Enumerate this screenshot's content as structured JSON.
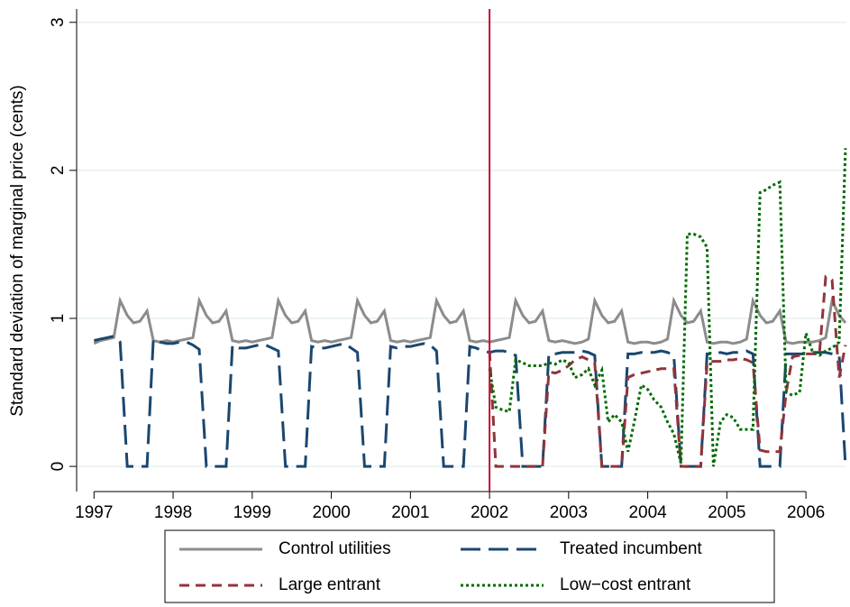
{
  "chart_data": {
    "type": "line",
    "ylabel": "Standard deviation of marginal price (cents)",
    "xlim": [
      1996.78,
      2006.5
    ],
    "ylim": [
      -0.17,
      3.09
    ],
    "xticks": [
      1997,
      1998,
      1999,
      2000,
      2001,
      2002,
      2003,
      2004,
      2005,
      2006
    ],
    "yticks": [
      0,
      1,
      2,
      3
    ],
    "grid": true,
    "legend": "bottom",
    "xline": {
      "value": 2002,
      "color": "#c4103a"
    },
    "x": [
      1997,
      1997.08,
      1997.17,
      1997.25,
      1997.33,
      1997.42,
      1997.5,
      1997.58,
      1997.67,
      1997.75,
      1997.83,
      1997.92,
      1998,
      1998.08,
      1998.17,
      1998.25,
      1998.33,
      1998.42,
      1998.5,
      1998.58,
      1998.67,
      1998.75,
      1998.83,
      1998.92,
      1999,
      1999.08,
      1999.17,
      1999.25,
      1999.33,
      1999.42,
      1999.5,
      1999.58,
      1999.67,
      1999.75,
      1999.83,
      1999.92,
      2000,
      2000.08,
      2000.17,
      2000.25,
      2000.33,
      2000.42,
      2000.5,
      2000.58,
      2000.67,
      2000.75,
      2000.83,
      2000.92,
      2001,
      2001.08,
      2001.17,
      2001.25,
      2001.33,
      2001.42,
      2001.5,
      2001.58,
      2001.67,
      2001.75,
      2001.83,
      2001.92,
      2002,
      2002.08,
      2002.17,
      2002.25,
      2002.33,
      2002.42,
      2002.5,
      2002.58,
      2002.67,
      2002.75,
      2002.83,
      2002.92,
      2003,
      2003.08,
      2003.17,
      2003.25,
      2003.33,
      2003.42,
      2003.5,
      2003.58,
      2003.67,
      2003.75,
      2003.83,
      2003.92,
      2004,
      2004.08,
      2004.17,
      2004.25,
      2004.33,
      2004.42,
      2004.5,
      2004.58,
      2004.67,
      2004.75,
      2004.83,
      2004.92,
      2005,
      2005.08,
      2005.17,
      2005.25,
      2005.33,
      2005.42,
      2005.5,
      2005.58,
      2005.67,
      2005.75,
      2005.83,
      2005.92,
      2006,
      2006.08,
      2006.17,
      2006.25,
      2006.33,
      2006.42,
      2006.5
    ],
    "series": [
      {
        "name": "Control utilities",
        "color": "#8c8c8c",
        "dash": "solid",
        "values": [
          0.83,
          0.85,
          0.86,
          0.87,
          1.12,
          1.02,
          0.97,
          0.98,
          1.05,
          0.85,
          0.84,
          0.85,
          0.84,
          0.85,
          0.86,
          0.87,
          1.12,
          1.02,
          0.97,
          0.98,
          1.05,
          0.85,
          0.84,
          0.85,
          0.84,
          0.85,
          0.86,
          0.87,
          1.12,
          1.02,
          0.97,
          0.98,
          1.05,
          0.85,
          0.84,
          0.85,
          0.84,
          0.85,
          0.86,
          0.87,
          1.12,
          1.02,
          0.97,
          0.98,
          1.05,
          0.85,
          0.84,
          0.85,
          0.84,
          0.85,
          0.86,
          0.87,
          1.12,
          1.02,
          0.97,
          0.98,
          1.05,
          0.85,
          0.84,
          0.85,
          0.84,
          0.85,
          0.86,
          0.87,
          1.12,
          1.02,
          0.97,
          0.98,
          1.05,
          0.85,
          0.84,
          0.85,
          0.84,
          0.83,
          0.84,
          0.86,
          1.12,
          1.02,
          0.97,
          0.98,
          1.05,
          0.84,
          0.83,
          0.84,
          0.84,
          0.83,
          0.84,
          0.86,
          1.12,
          1.02,
          0.97,
          0.98,
          1.05,
          0.84,
          0.83,
          0.84,
          0.84,
          0.83,
          0.84,
          0.86,
          1.12,
          1.02,
          0.97,
          0.98,
          1.05,
          0.84,
          0.83,
          0.84,
          0.84,
          0.84,
          0.85,
          0.87,
          1.12,
          1.02,
          0.97
        ]
      },
      {
        "name": "Treated incumbent",
        "color": "#1a476f",
        "dash": "longdash",
        "values": [
          0.85,
          0.86,
          0.87,
          0.88,
          0.84,
          0,
          0,
          0,
          0,
          0.86,
          0.84,
          0.83,
          0.83,
          0.84,
          0.84,
          0.82,
          0.79,
          0,
          0,
          0,
          0,
          0.82,
          0.8,
          0.8,
          0.81,
          0.82,
          0.82,
          0.8,
          0.78,
          0,
          0,
          0,
          0,
          0.81,
          0.8,
          0.8,
          0.81,
          0.82,
          0.83,
          0.8,
          0.77,
          0,
          0,
          0,
          0,
          0.81,
          0.8,
          0.81,
          0.81,
          0.82,
          0.83,
          0.82,
          0.78,
          0,
          0,
          0,
          0,
          0.81,
          0.8,
          0.78,
          0.77,
          0.78,
          0.78,
          0.77,
          0.75,
          0,
          0,
          0,
          0,
          0.76,
          0.76,
          0.77,
          0.77,
          0.77,
          0.78,
          0.77,
          0.75,
          0,
          0,
          0,
          0,
          0.76,
          0.76,
          0.77,
          0.77,
          0.77,
          0.78,
          0.77,
          0.75,
          0,
          0,
          0,
          0,
          0.76,
          0.76,
          0.77,
          0.76,
          0.77,
          0.77,
          0.78,
          0.76,
          0,
          0,
          0,
          0,
          0.76,
          0.76,
          0.76,
          0.76,
          0.77,
          0.77,
          0.77,
          0.76,
          0.75,
          0
        ]
      },
      {
        "name": "Large entrant",
        "color": "#90353b",
        "dash": "dash",
        "values": [
          null,
          null,
          null,
          null,
          null,
          null,
          null,
          null,
          null,
          null,
          null,
          null,
          null,
          null,
          null,
          null,
          null,
          null,
          null,
          null,
          null,
          null,
          null,
          null,
          null,
          null,
          null,
          null,
          null,
          null,
          null,
          null,
          null,
          null,
          null,
          null,
          null,
          null,
          null,
          null,
          null,
          null,
          null,
          null,
          null,
          null,
          null,
          null,
          null,
          null,
          null,
          null,
          null,
          null,
          null,
          null,
          null,
          null,
          null,
          null,
          0.78,
          0,
          0,
          0,
          0,
          0,
          0,
          0,
          0,
          0.64,
          0.63,
          0.65,
          0.68,
          0.72,
          0.74,
          0.72,
          0.7,
          0,
          0,
          0,
          0,
          0.6,
          0.62,
          0.63,
          0.64,
          0.65,
          0.66,
          0.66,
          0.66,
          0,
          0,
          0,
          0,
          0.7,
          0.71,
          0.71,
          0.72,
          0.72,
          0.73,
          0.72,
          0.7,
          0.11,
          0.1,
          0.1,
          0.1,
          0.5,
          0.74,
          0.75,
          0.76,
          0.76,
          0.76,
          1.28,
          1.26,
          0.6,
          0.82
        ]
      },
      {
        "name": "Low−cost entrant",
        "color": "#006b00",
        "dash": "dot",
        "values": [
          null,
          null,
          null,
          null,
          null,
          null,
          null,
          null,
          null,
          null,
          null,
          null,
          null,
          null,
          null,
          null,
          null,
          null,
          null,
          null,
          null,
          null,
          null,
          null,
          null,
          null,
          null,
          null,
          null,
          null,
          null,
          null,
          null,
          null,
          null,
          null,
          null,
          null,
          null,
          null,
          null,
          null,
          null,
          null,
          null,
          null,
          null,
          null,
          null,
          null,
          null,
          null,
          null,
          null,
          null,
          null,
          null,
          null,
          null,
          null,
          0.66,
          0.4,
          0.38,
          0.37,
          0.72,
          0.7,
          0.68,
          0.68,
          0.68,
          0.7,
          0.69,
          0.72,
          0.7,
          0.6,
          0.62,
          0.66,
          0.55,
          0.65,
          0.3,
          0.35,
          0.3,
          0.1,
          0.3,
          0.55,
          0.52,
          0.45,
          0.4,
          0.3,
          0.22,
          0.02,
          1.57,
          1.57,
          1.55,
          1.48,
          0,
          0.3,
          0.35,
          0.33,
          0.25,
          0.25,
          0.25,
          1.85,
          1.87,
          1.9,
          1.92,
          0.5,
          0.48,
          0.5,
          0.9,
          0.78,
          0.75,
          0.78,
          0.8,
          0.84,
          2.15
        ]
      }
    ]
  }
}
